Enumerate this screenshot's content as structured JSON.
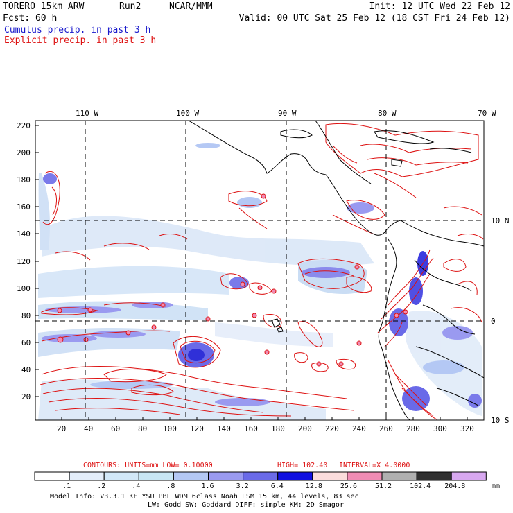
{
  "header": {
    "model": "TORERO  15km ARW",
    "run": "Run2",
    "org": "NCAR/MMM",
    "init": "Init: 12 UTC Wed 22 Feb 12",
    "fcst": "Fcst:   60 h",
    "valid": "Valid: 00 UTC Sat 25 Feb 12 (18 CST Fri 24 Feb 12)",
    "line_cumulus": "Cumulus precip. in past 3 h",
    "line_explicit": "Explicit precip. in past 3 h"
  },
  "map": {
    "lon_labels": [
      "110 W",
      "100 W",
      "90 W",
      "80 W",
      "70 W"
    ],
    "lat_labels": [
      "10 N",
      "0",
      "10 S"
    ],
    "y_ticks": [
      "220",
      "200",
      "180",
      "160",
      "140",
      "120",
      "100",
      "80",
      "60",
      "40",
      "20"
    ],
    "x_ticks": [
      "20",
      "40",
      "60",
      "80",
      "100",
      "120",
      "140",
      "160",
      "180",
      "200",
      "220",
      "240",
      "260",
      "280",
      "300",
      "320"
    ]
  },
  "contours_info": {
    "label": "CONTOURS:  UNITS=mm  LOW= 0.10000",
    "high": "HIGH=  102.40",
    "interval": "INTERVAL=X  4.0000"
  },
  "colorbar": {
    "labels": [
      ".1",
      ".2",
      ".4",
      ".8",
      "1.6",
      "3.2",
      "6.4",
      "12.8",
      "25.6",
      "51.2",
      "102.4",
      "204.8"
    ],
    "unit": "mm",
    "colors": [
      "#ffffff",
      "#e4eefa",
      "#d2e8f8",
      "#c8e6f4",
      "#b4c8f4",
      "#9a9af0",
      "#6a6ae8",
      "#1010e0",
      "#fbdcdc",
      "#f08cb4",
      "#b0b0b0",
      "#303030",
      "#d8a8f0"
    ]
  },
  "footer": {
    "line1": "Model Info: V3.3.1   KF     YSU PBL   WDM 6class  Noah LSM  15 km,   44 levels,   83 sec",
    "line2": "LW: Godd SW: Goddard DIFF: simple KM: 2D Smagor"
  },
  "colors": {
    "contour_red": "#dd1111",
    "cumulus_blue": "#1a1acc",
    "coast": "#000000"
  }
}
